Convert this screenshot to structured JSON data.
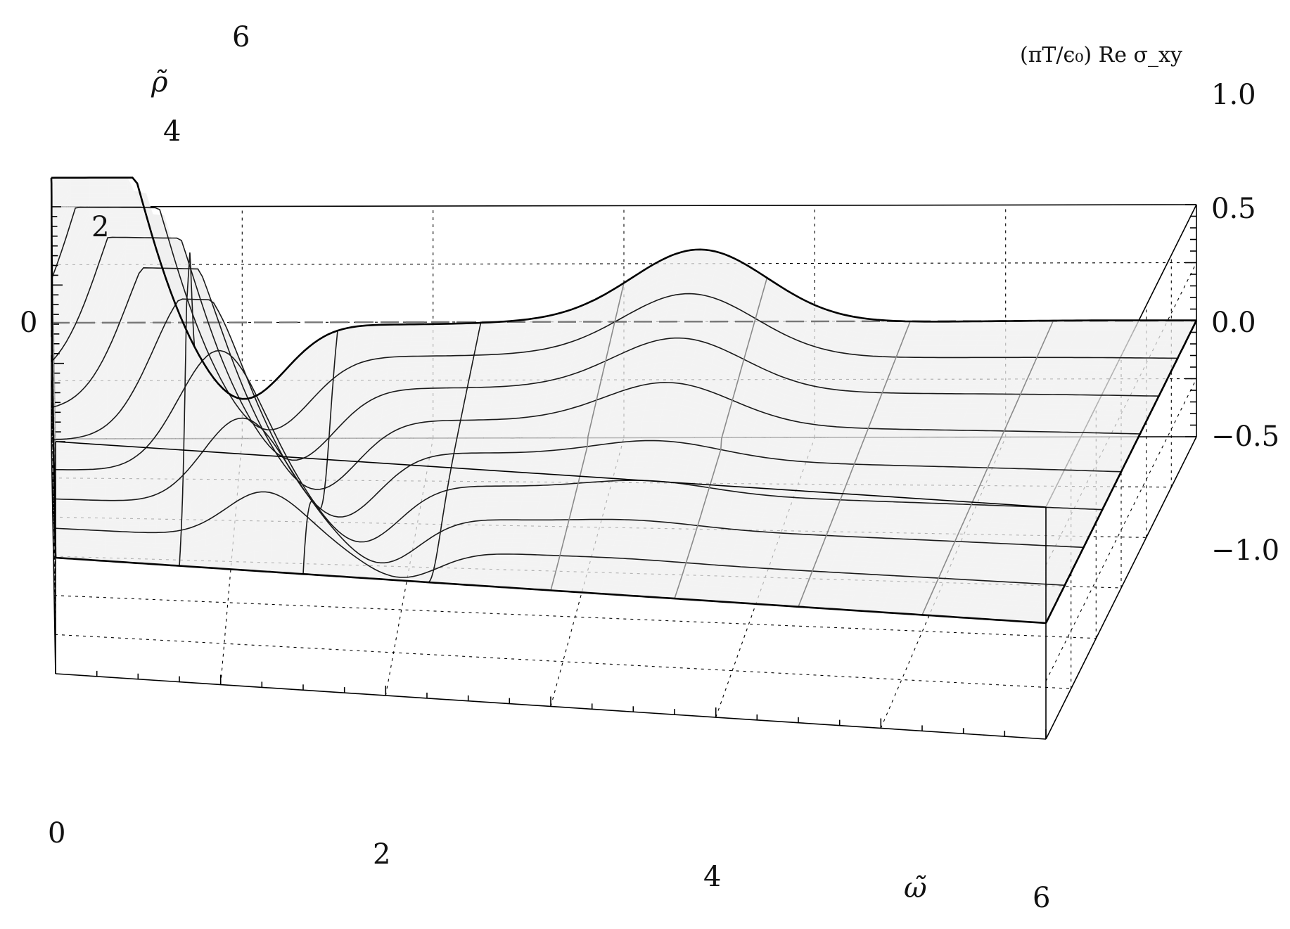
{
  "chart_data": {
    "type": "surface3d",
    "title": "",
    "function_label": "(πT/ϵ₀) Re σ_xy",
    "x_axis": {
      "label": "ω̃",
      "range": [
        0,
        6
      ],
      "ticks": [
        "0",
        "2",
        "4",
        "6"
      ]
    },
    "y_axis": {
      "label": "ρ̃",
      "range": [
        0,
        6
      ],
      "ticks": [
        "0",
        "2",
        "4",
        "6"
      ]
    },
    "z_axis": {
      "range": [
        -1.0,
        1.0
      ],
      "ticks": [
        "−1.0",
        "−0.5",
        "0.0",
        "0.5",
        "1.0"
      ]
    },
    "clipped_region_color": "#5b94e0",
    "surface_color": "#efefef",
    "mesh_omega": [
      0.75,
      1.5,
      2.25,
      3.0,
      3.75,
      4.5,
      5.25
    ],
    "mesh_rho": [
      0.75,
      1.5,
      2.25,
      3.0,
      3.75,
      4.5,
      5.25
    ],
    "grid": true
  }
}
